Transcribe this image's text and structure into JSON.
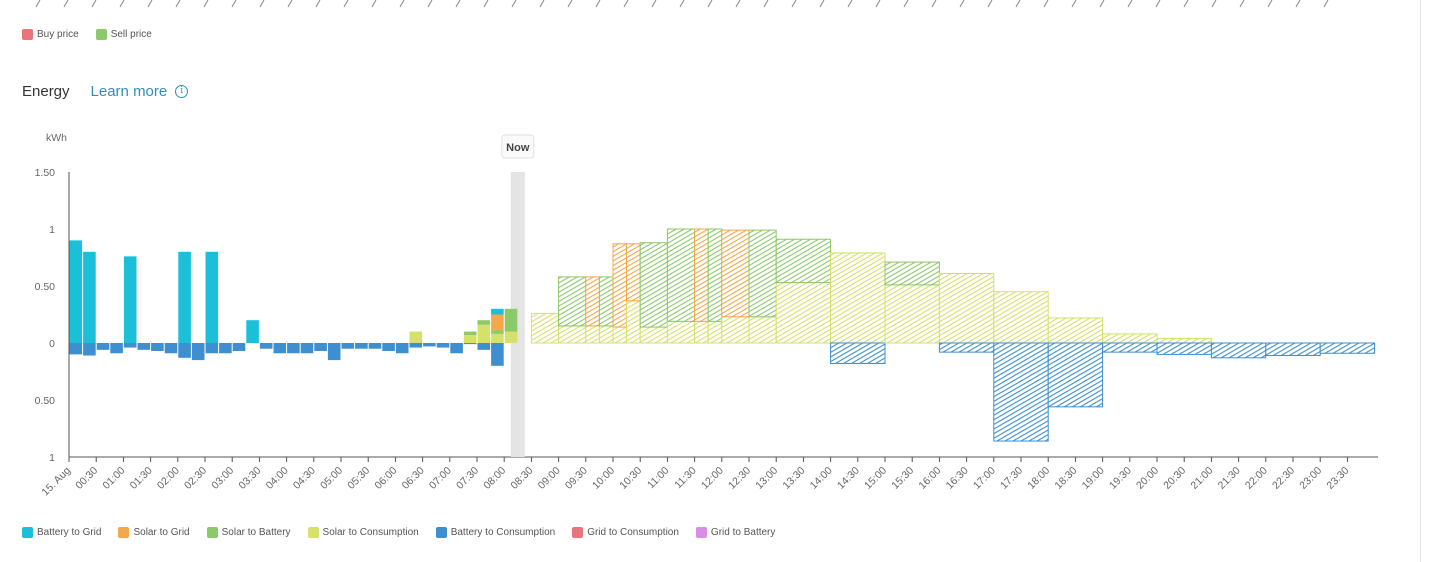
{
  "price_legend": [
    {
      "label": "Buy price",
      "color": "#e8747c"
    },
    {
      "label": "Sell price",
      "color": "#8bc96a"
    }
  ],
  "energy": {
    "title": "Energy",
    "learn_more": "Learn more",
    "info_icon": "info-icon"
  },
  "energy_legend": [
    {
      "label": "Battery to Grid",
      "color": "#1cbfd8"
    },
    {
      "label": "Solar to Grid",
      "color": "#f3a84a"
    },
    {
      "label": "Solar to Battery",
      "color": "#8bc96a"
    },
    {
      "label": "Solar to Consumption",
      "color": "#d6e06b"
    },
    {
      "label": "Battery to Consumption",
      "color": "#3d8fd0"
    },
    {
      "label": "Grid to Consumption",
      "color": "#e8747c"
    },
    {
      "label": "Grid to Battery",
      "color": "#d98de8"
    }
  ],
  "chart_data": {
    "type": "bar",
    "ylabel": "kWh",
    "ylim": [
      -1,
      1.5
    ],
    "y_ticks": [
      {
        "v": 1.5,
        "label": "1.50"
      },
      {
        "v": 1,
        "label": "1"
      },
      {
        "v": 0.5,
        "label": "0.50"
      },
      {
        "v": 0,
        "label": "0"
      },
      {
        "v": -0.5,
        "label": "0.50"
      },
      {
        "v": -1,
        "label": "1"
      }
    ],
    "x_labels": [
      "15. Aug",
      "00:30",
      "01:00",
      "01:30",
      "02:00",
      "02:30",
      "03:00",
      "03:30",
      "04:00",
      "04:30",
      "05:00",
      "05:30",
      "06:00",
      "06:30",
      "07:00",
      "07:30",
      "08:00",
      "08:30",
      "09:00",
      "09:30",
      "10:00",
      "10:30",
      "11:00",
      "11:30",
      "12:00",
      "12:30",
      "13:00",
      "13:30",
      "14:00",
      "14:30",
      "15:00",
      "15:30",
      "16:00",
      "16:30",
      "17:00",
      "17:30",
      "18:00",
      "18:30",
      "19:00",
      "19:30",
      "20:00",
      "20:30",
      "21:00",
      "21:30",
      "22:00",
      "22:30",
      "23:00",
      "23:30"
    ],
    "now_label": "Now",
    "now_time": "08:15",
    "series_colors": {
      "battery_to_grid": "#1cbfd8",
      "solar_to_grid": "#f3a84a",
      "solar_to_battery": "#8bc96a",
      "solar_to_consumption": "#d6e06b",
      "battery_to_consumption": "#3d8fd0"
    },
    "past_slots": [
      {
        "t": "00:00",
        "battery_to_grid": 0.9,
        "battery_to_consumption": -0.1
      },
      {
        "t": "00:15",
        "battery_to_grid": 0.8,
        "battery_to_consumption": -0.11
      },
      {
        "t": "00:30",
        "battery_to_consumption": -0.06
      },
      {
        "t": "00:45",
        "battery_to_consumption": -0.09
      },
      {
        "t": "01:00",
        "battery_to_grid": 0.76,
        "battery_to_consumption": -0.04
      },
      {
        "t": "01:15",
        "battery_to_consumption": -0.06
      },
      {
        "t": "01:30",
        "battery_to_consumption": -0.07
      },
      {
        "t": "01:45",
        "battery_to_consumption": -0.09
      },
      {
        "t": "02:00",
        "battery_to_grid": 0.8,
        "battery_to_consumption": -0.13
      },
      {
        "t": "02:15",
        "battery_to_consumption": -0.15
      },
      {
        "t": "02:30",
        "battery_to_grid": 0.8,
        "battery_to_consumption": -0.09
      },
      {
        "t": "02:45",
        "battery_to_consumption": -0.09
      },
      {
        "t": "03:00",
        "battery_to_consumption": -0.07
      },
      {
        "t": "03:15",
        "battery_to_grid": 0.2
      },
      {
        "t": "03:30",
        "battery_to_consumption": -0.05
      },
      {
        "t": "03:45",
        "battery_to_consumption": -0.09
      },
      {
        "t": "04:00",
        "battery_to_consumption": -0.09
      },
      {
        "t": "04:15",
        "battery_to_consumption": -0.09
      },
      {
        "t": "04:30",
        "battery_to_consumption": -0.07
      },
      {
        "t": "04:45",
        "battery_to_consumption": -0.15
      },
      {
        "t": "05:00",
        "battery_to_consumption": -0.05
      },
      {
        "t": "05:15",
        "battery_to_consumption": -0.05
      },
      {
        "t": "05:30",
        "battery_to_consumption": -0.05
      },
      {
        "t": "05:45",
        "battery_to_consumption": -0.07
      },
      {
        "t": "06:00",
        "battery_to_consumption": -0.09
      },
      {
        "t": "06:15",
        "solar_to_consumption": 0.1,
        "battery_to_consumption": -0.04
      },
      {
        "t": "06:30",
        "battery_to_consumption": -0.03
      },
      {
        "t": "06:45",
        "battery_to_consumption": -0.04
      },
      {
        "t": "07:00",
        "battery_to_consumption": -0.09
      },
      {
        "t": "07:15",
        "solar_to_consumption": 0.07,
        "solar_to_battery": 0.03,
        "battery_to_consumption": -0.01
      },
      {
        "t": "07:30",
        "solar_to_consumption": 0.16,
        "solar_to_battery": 0.04,
        "battery_to_consumption": -0.06
      },
      {
        "t": "07:45",
        "solar_to_consumption": 0.08,
        "solar_to_battery": 0.03,
        "solar_to_grid": 0.14,
        "battery_to_grid": 0.05,
        "battery_to_consumption": -0.2
      },
      {
        "t": "08:00",
        "solar_to_consumption": 0.1,
        "solar_to_battery": 0.2
      }
    ],
    "forecast_blocks": [
      {
        "start": "08:30",
        "end": "09:00",
        "solar_to_consumption": 0.26
      },
      {
        "start": "09:00",
        "end": "09:30",
        "solar_to_consumption": 0.15,
        "solar_to_battery": 0.43
      },
      {
        "start": "09:30",
        "end": "09:45",
        "solar_to_consumption": 0.15,
        "solar_to_grid": 0.43
      },
      {
        "start": "09:45",
        "end": "10:00",
        "solar_to_consumption": 0.15,
        "solar_to_battery": 0.43
      },
      {
        "start": "10:00",
        "end": "10:15",
        "solar_to_consumption": 0.14,
        "solar_to_grid": 0.73
      },
      {
        "start": "10:15",
        "end": "10:30",
        "solar_to_consumption": 0.37,
        "solar_to_grid": 0.5
      },
      {
        "start": "10:30",
        "end": "11:00",
        "solar_to_consumption": 0.14,
        "solar_to_battery": 0.74
      },
      {
        "start": "11:00",
        "end": "11:30",
        "solar_to_consumption": 0.19,
        "solar_to_battery": 0.81
      },
      {
        "start": "11:30",
        "end": "11:45",
        "solar_to_consumption": 0.19,
        "solar_to_grid": 0.81
      },
      {
        "start": "11:45",
        "end": "12:00",
        "solar_to_consumption": 0.19,
        "solar_to_battery": 0.81
      },
      {
        "start": "12:00",
        "end": "12:30",
        "solar_to_consumption": 0.23,
        "solar_to_grid": 0.76
      },
      {
        "start": "12:30",
        "end": "13:00",
        "solar_to_consumption": 0.23,
        "solar_to_battery": 0.76
      },
      {
        "start": "13:00",
        "end": "14:00",
        "solar_to_consumption": 0.53,
        "solar_to_battery": 0.38
      },
      {
        "start": "14:00",
        "end": "15:00",
        "solar_to_consumption": 0.79,
        "battery_to_consumption": -0.18
      },
      {
        "start": "15:00",
        "end": "16:00",
        "solar_to_consumption": 0.51,
        "solar_to_battery": 0.2
      },
      {
        "start": "16:00",
        "end": "17:00",
        "solar_to_consumption": 0.61,
        "battery_to_consumption": -0.08
      },
      {
        "start": "17:00",
        "end": "18:00",
        "solar_to_consumption": 0.45,
        "battery_to_consumption": -0.86
      },
      {
        "start": "18:00",
        "end": "19:00",
        "solar_to_consumption": 0.22,
        "battery_to_consumption": -0.56
      },
      {
        "start": "19:00",
        "end": "20:00",
        "solar_to_consumption": 0.08,
        "battery_to_consumption": -0.08
      },
      {
        "start": "20:00",
        "end": "21:00",
        "solar_to_consumption": 0.04,
        "battery_to_consumption": -0.1
      },
      {
        "start": "21:00",
        "end": "22:00",
        "battery_to_consumption": -0.13
      },
      {
        "start": "22:00",
        "end": "23:00",
        "battery_to_consumption": -0.11
      },
      {
        "start": "23:00",
        "end": "24:00",
        "battery_to_consumption": -0.09
      }
    ]
  }
}
